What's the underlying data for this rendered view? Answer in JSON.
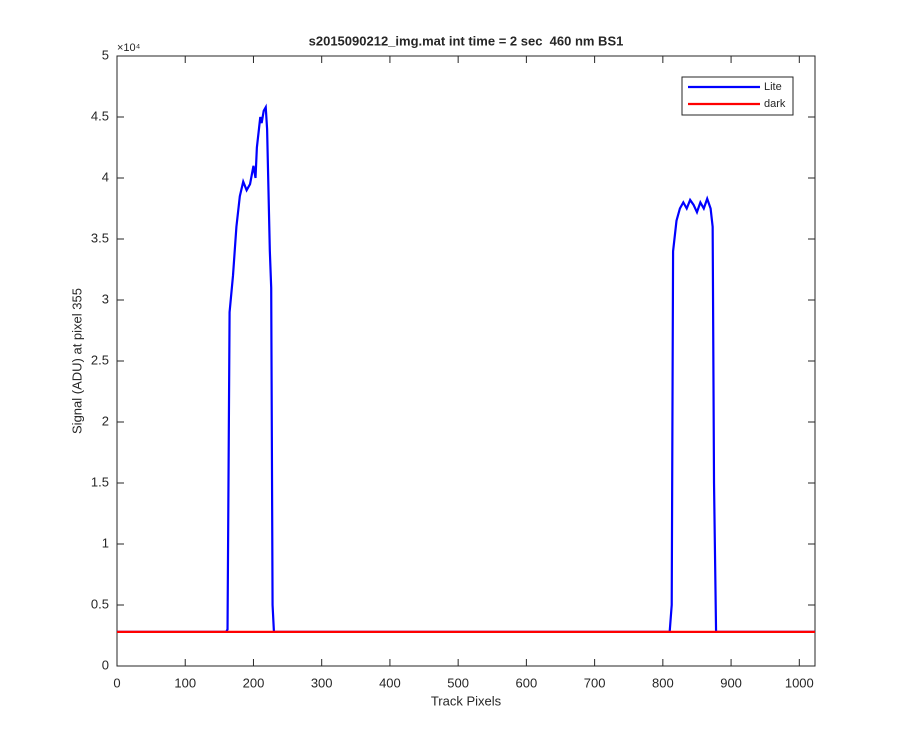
{
  "chart_data": {
    "type": "line",
    "title": "s2015090212_img.mat int time = 2 sec  460 nm BS1",
    "x_label": "Track Pixels",
    "y_label": "Signal (ADU) at pixel 355",
    "y_multiplier": "×10⁴",
    "xlim": [
      0,
      1023
    ],
    "xticks": [
      0,
      100,
      200,
      300,
      400,
      500,
      600,
      700,
      800,
      900,
      1000
    ],
    "ylim": [
      0,
      5
    ],
    "yticks": [
      0,
      0.5,
      1,
      1.5,
      2,
      2.5,
      3,
      3.5,
      4,
      4.5,
      5
    ],
    "legend": "top-right",
    "series": [
      {
        "name": "Lite",
        "color": "#0000ff",
        "x": [
          0,
          160,
          162,
          165,
          170,
          175,
          180,
          185,
          190,
          195,
          200,
          203,
          205,
          208,
          210,
          212,
          215,
          218,
          220,
          222,
          224,
          226,
          228,
          230,
          810,
          813,
          815,
          820,
          825,
          830,
          835,
          840,
          845,
          850,
          855,
          860,
          865,
          870,
          873,
          875,
          878,
          1023
        ],
        "values": [
          0.28,
          0.28,
          0.3,
          2.9,
          3.2,
          3.6,
          3.85,
          3.97,
          3.9,
          3.95,
          4.1,
          4.0,
          4.25,
          4.4,
          4.5,
          4.45,
          4.55,
          4.58,
          4.4,
          3.9,
          3.4,
          3.1,
          0.5,
          0.28,
          0.28,
          0.5,
          3.4,
          3.65,
          3.75,
          3.8,
          3.75,
          3.82,
          3.78,
          3.72,
          3.8,
          3.75,
          3.83,
          3.75,
          3.6,
          1.5,
          0.28,
          0.28
        ]
      },
      {
        "name": "dark",
        "color": "#ff0000",
        "x": [
          0,
          256,
          512,
          768,
          1023
        ],
        "values": [
          0.28,
          0.28,
          0.28,
          0.28,
          0.28
        ]
      }
    ]
  }
}
